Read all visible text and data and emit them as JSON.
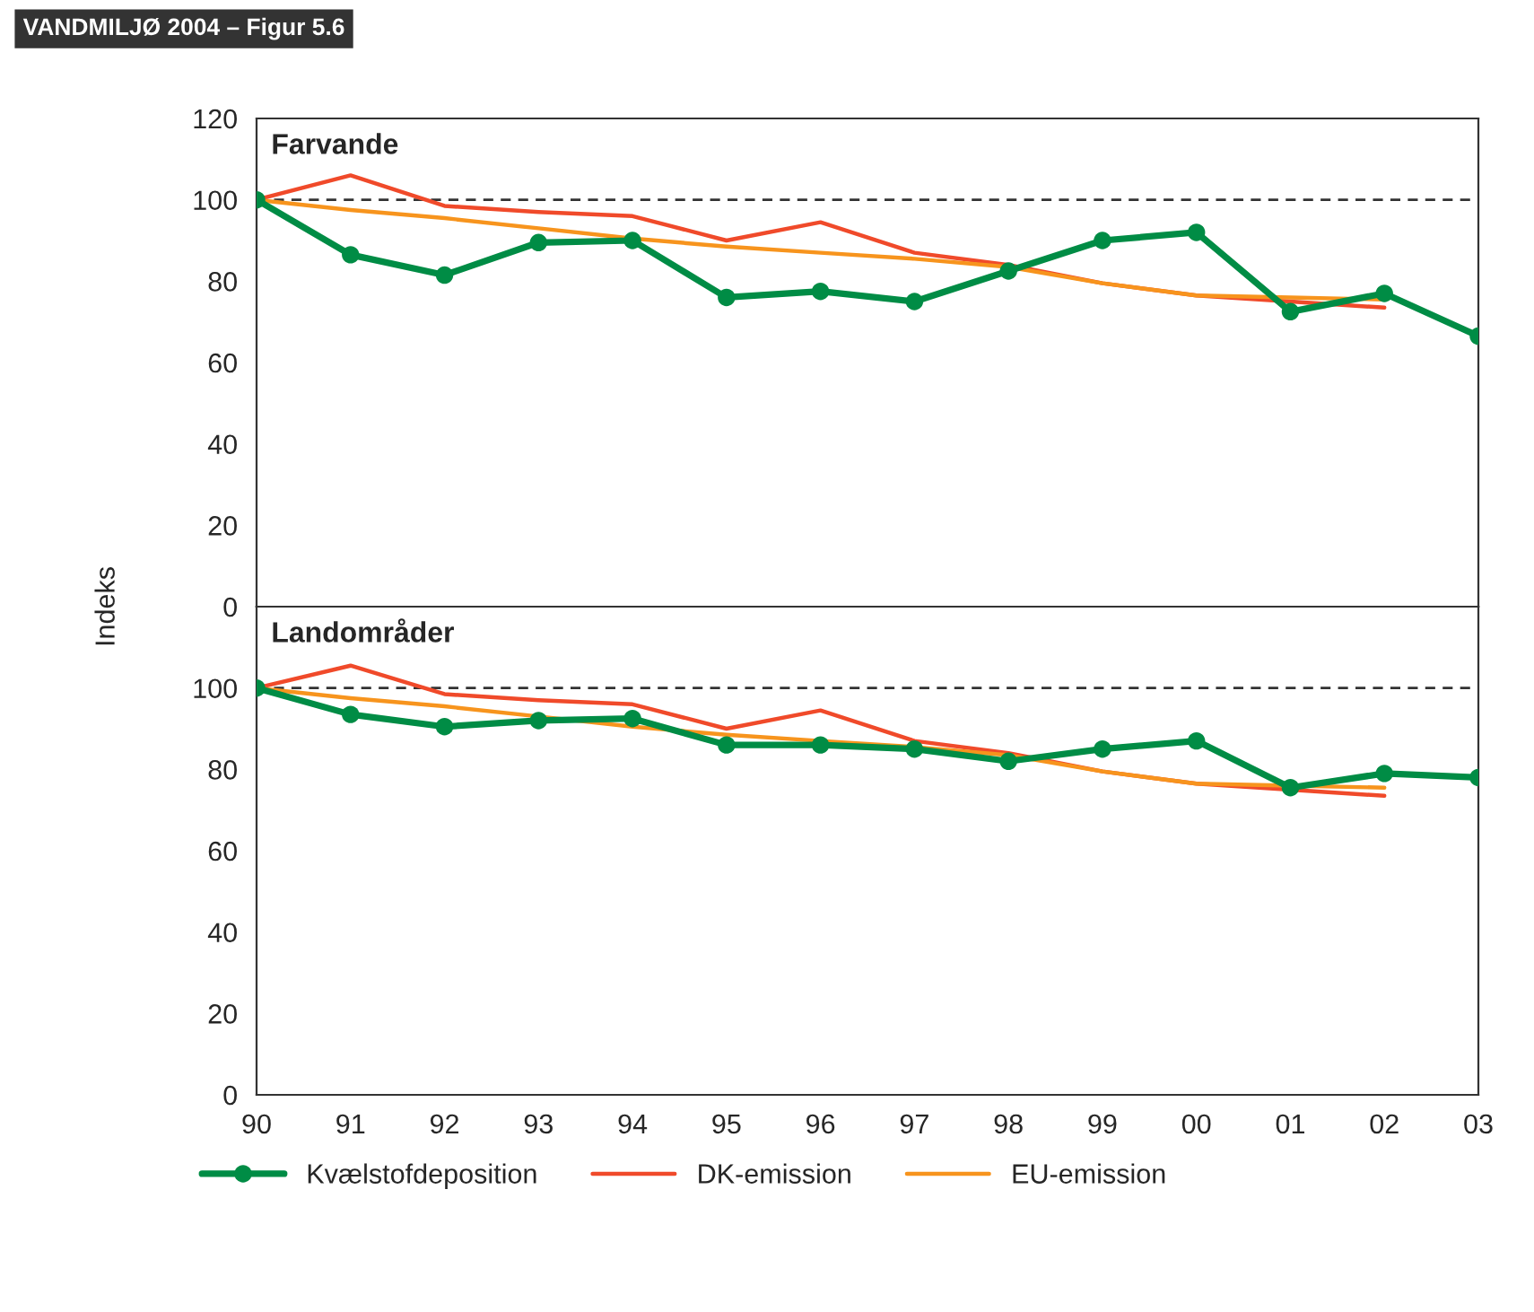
{
  "chart_data": [
    {
      "type": "line",
      "title": "VANDMILJØ 2004 – Figur 5.6",
      "subtitle": "Farvande",
      "ylabel": "Indeks",
      "categories": [
        "90",
        "91",
        "92",
        "93",
        "94",
        "95",
        "96",
        "97",
        "98",
        "99",
        "00",
        "01",
        "02",
        "03"
      ],
      "ylim": [
        0,
        120
      ],
      "yticks": [
        0,
        20,
        40,
        60,
        80,
        100,
        120
      ],
      "tick_labels": "y",
      "grid": false,
      "ref_lines": [
        {
          "axis": "y",
          "value": 100,
          "line_style": "dashed",
          "color": "#333333"
        }
      ],
      "series": [
        {
          "color": "#008c45",
          "marker": "circle",
          "values": [
            100,
            86.5,
            81.5,
            89.5,
            90,
            76,
            77.5,
            75,
            82.5,
            90,
            92,
            72.5,
            77,
            66.5
          ]
        },
        {
          "color": "#f04a2a",
          "marker": "none",
          "values": [
            100,
            106,
            98.5,
            97,
            96,
            90,
            94.5,
            87,
            84,
            79.5,
            76.5,
            75,
            73.5,
            null
          ]
        },
        {
          "color": "#f7941d",
          "marker": "none",
          "values": [
            100,
            97.5,
            95.5,
            93,
            90.5,
            88.5,
            87,
            85.5,
            83.5,
            79.5,
            76.5,
            76,
            75.5,
            null
          ]
        }
      ]
    },
    {
      "type": "line",
      "subtitle": "Landområder",
      "categories": [
        "90",
        "91",
        "92",
        "93",
        "94",
        "95",
        "96",
        "97",
        "98",
        "99",
        "00",
        "01",
        "02",
        "03"
      ],
      "ylim": [
        0,
        120
      ],
      "yticks": [
        0,
        20,
        40,
        60,
        80,
        100
      ],
      "grid": false,
      "legend": "bottom",
      "ref_lines": [
        {
          "axis": "y",
          "value": 100,
          "line_style": "dashed",
          "color": "#333333"
        }
      ],
      "series": [
        {
          "name": "Kvælstofdeposition",
          "color": "#008c45",
          "marker": "circle",
          "values": [
            100,
            93.5,
            90.5,
            92,
            92.5,
            86,
            86,
            85,
            82,
            85,
            87,
            75.5,
            79,
            78
          ]
        },
        {
          "name": "DK-emission",
          "color": "#f04a2a",
          "marker": "none",
          "values": [
            100,
            105.5,
            98.5,
            97,
            96,
            90,
            94.5,
            87,
            84,
            79.5,
            76.5,
            75,
            73.5,
            null
          ]
        },
        {
          "name": "EU-emission",
          "color": "#f7941d",
          "marker": "none",
          "values": [
            100,
            97.5,
            95.5,
            93,
            90.5,
            88.5,
            87,
            85.5,
            83.5,
            79.5,
            76.5,
            76,
            75.5,
            null
          ]
        }
      ]
    }
  ]
}
